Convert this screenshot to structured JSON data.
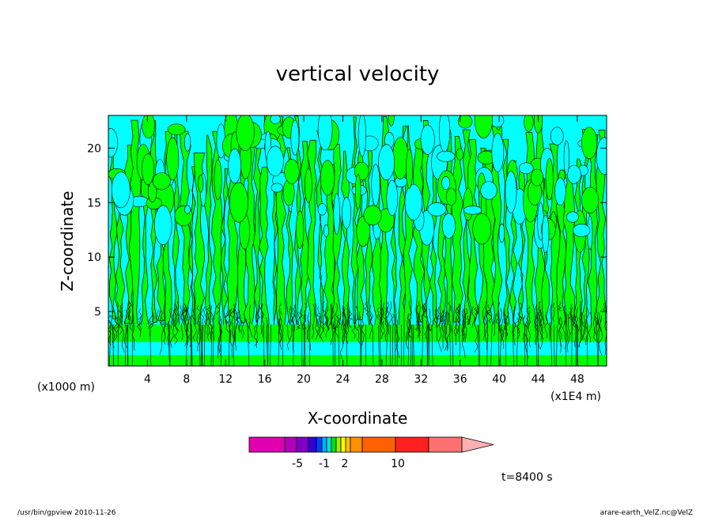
{
  "chart_data": {
    "type": "heatmap",
    "title": "vertical velocity",
    "xlabel": "X-coordinate",
    "ylabel": "Z-coordinate",
    "x_unit_left": "(x1000 m)",
    "x_unit_right": "(x1E4 m)",
    "x_ticks": [
      4,
      8,
      12,
      16,
      20,
      24,
      28,
      32,
      36,
      40,
      44,
      48
    ],
    "y_ticks": [
      5,
      10,
      15,
      20
    ],
    "xlim": [
      0,
      51
    ],
    "ylim": [
      0,
      23
    ],
    "colorbar": {
      "tick_labels": [
        "-5",
        "-1",
        "2",
        "10"
      ],
      "colors": [
        "#e000b0",
        "#b000b8",
        "#8000c8",
        "#3000d8",
        "#0040ff",
        "#00b0ff",
        "#00e0e0",
        "#00e800",
        "#a0f000",
        "#ffff00",
        "#ffc000",
        "#ff9000",
        "#ff6000",
        "#ff2020",
        "#ff7070",
        "#ffb0b0"
      ]
    },
    "field_colors": {
      "negative": "#00ffff",
      "positive": "#00ff00"
    },
    "time_label": "t=8400 s"
  },
  "footer": {
    "left": "/usr/bin/gpview  2010-11-26",
    "right": "arare-earth_VelZ.nc@VelZ"
  }
}
